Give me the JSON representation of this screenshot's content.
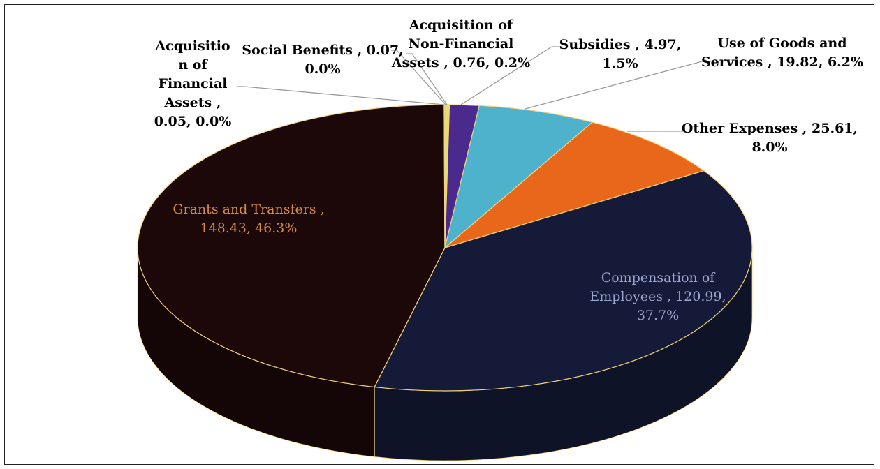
{
  "chart_data": {
    "type": "pie",
    "style": "3d",
    "slices": [
      {
        "name": "Acquisition of Non-Financial Assets",
        "value": 0.76,
        "percent": "0.2%",
        "color": "#dfe07a",
        "label_lines": [
          "Acquisition of",
          "Non-Financial",
          "Assets , 0.76, 0.2%"
        ]
      },
      {
        "name": "Subsidies",
        "value": 4.97,
        "percent": "1.5%",
        "color": "#4a2a8c",
        "label_lines": [
          "Subsidies , 4.97,",
          "1.5%"
        ]
      },
      {
        "name": "Use of Goods and Services",
        "value": 19.82,
        "percent": "6.2%",
        "color": "#4fb2cc",
        "label_lines": [
          "Use of Goods and",
          "Services , 19.82, 6.2%"
        ]
      },
      {
        "name": "Other Expenses",
        "value": 25.61,
        "percent": "8.0%",
        "color": "#e8671b",
        "label_lines": [
          "Other Expenses , 25.61,",
          "8.0%"
        ]
      },
      {
        "name": "Compensation of Employees",
        "value": 120.99,
        "percent": "37.7%",
        "color": "#151a38",
        "label_lines": [
          "Compensation of",
          "Employees , 120.99,",
          "37.7%"
        ],
        "label_color": "#9aa6cf"
      },
      {
        "name": "Grants and Transfers",
        "value": 148.43,
        "percent": "46.3%",
        "color": "#1c0809",
        "label_lines": [
          "Grants and Transfers ,",
          "148.43, 46.3%"
        ],
        "label_color": "#d78b45"
      },
      {
        "name": "Acquisition of Financial Assets",
        "value": 0.05,
        "percent": "0.0%",
        "color": "#7a2a10",
        "label_lines": [
          "Acquisitio",
          "n of",
          "Financial",
          "Assets ,",
          "0.05, 0.0%"
        ]
      },
      {
        "name": "Social Benefits",
        "value": 0.07,
        "percent": "0.0%",
        "color": "#e8c65a",
        "label_lines": [
          "Social Benefits , 0.07,",
          "0.0%"
        ]
      }
    ],
    "edge_color": "#f3d37a",
    "legend": "none"
  }
}
